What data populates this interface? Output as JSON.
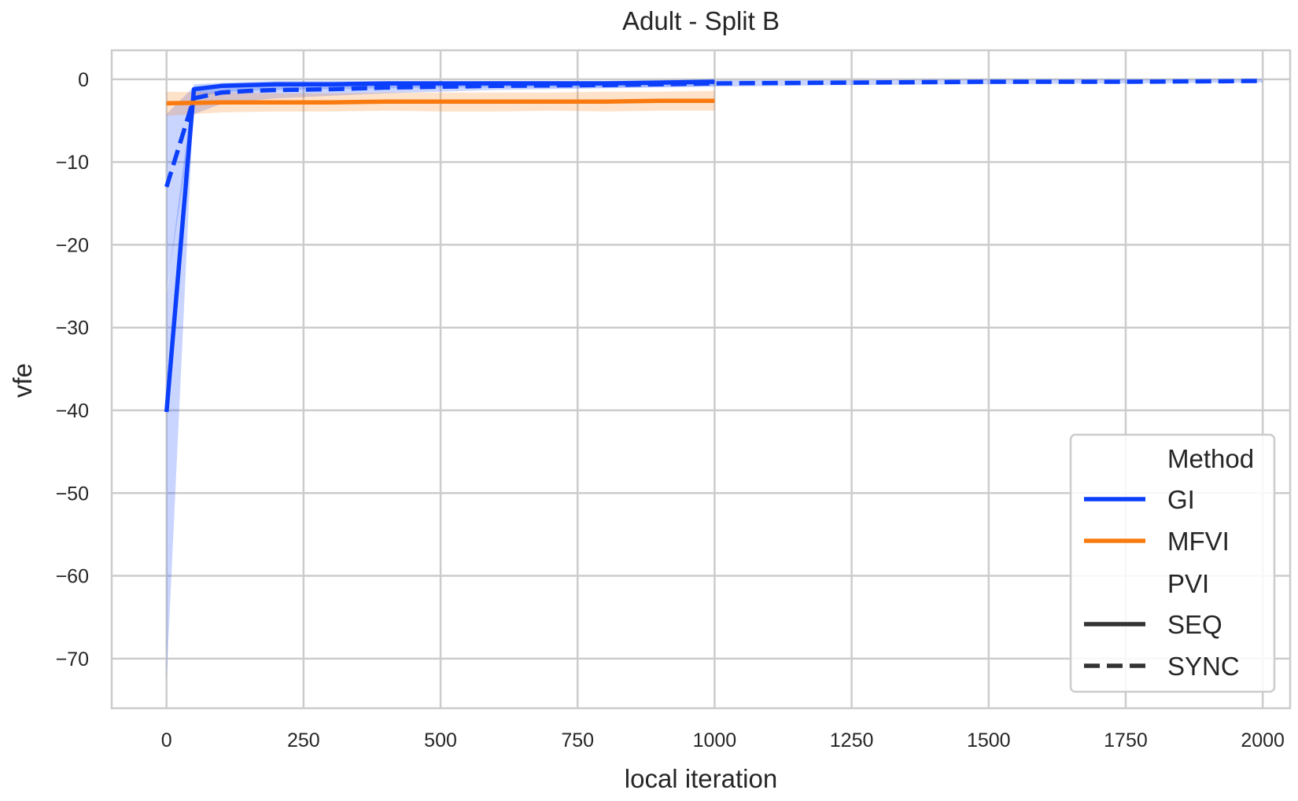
{
  "chart_data": {
    "type": "line",
    "title": "Adult - Split B",
    "xlabel": "local iteration",
    "ylabel": "vfe",
    "xlim": [
      -100,
      2050
    ],
    "ylim": [
      -76,
      3.5
    ],
    "xticks": [
      0,
      250,
      500,
      750,
      1000,
      1250,
      1500,
      1750,
      2000
    ],
    "xtick_labels": [
      "0",
      "250",
      "500",
      "750",
      "1000",
      "1250",
      "1500",
      "1750",
      "2000"
    ],
    "yticks": [
      0,
      -10,
      -20,
      -30,
      -40,
      -50,
      -60,
      -70
    ],
    "ytick_labels": [
      "0",
      "−10",
      "−20",
      "−30",
      "−40",
      "−50",
      "−60",
      "−70"
    ],
    "grid": true,
    "legend": {
      "placement": "lower-right",
      "hue_title": "Method",
      "style_title": "PVI",
      "entries": [
        {
          "label": "GI",
          "kind": "hue"
        },
        {
          "label": "MFVI",
          "kind": "hue"
        },
        {
          "label": "SEQ",
          "kind": "style"
        },
        {
          "label": "SYNC",
          "kind": "style"
        }
      ]
    },
    "colors": {
      "GI": "#0b3ffb",
      "MFVI": "#f97a0f",
      "style_key": "#333333"
    },
    "series": [
      {
        "method": "GI",
        "pvi": "SEQ",
        "dash": "solid",
        "x": [
          0,
          50,
          100,
          150,
          200,
          300,
          400,
          500,
          600,
          700,
          800,
          900,
          1000
        ],
        "y": [
          -40.2,
          -1.2,
          -0.8,
          -0.7,
          -0.6,
          -0.6,
          -0.5,
          -0.5,
          -0.5,
          -0.5,
          -0.5,
          -0.4,
          -0.3
        ],
        "lower": [
          -72.5,
          -2.2,
          -1.6,
          -1.4,
          -1.3,
          -1.2,
          -1.1,
          -1.0,
          -1.0,
          -1.0,
          -1.0,
          -0.9,
          -0.8
        ],
        "upper": [
          -26.0,
          -0.6,
          -0.4,
          -0.3,
          -0.2,
          -0.2,
          -0.2,
          -0.2,
          -0.2,
          -0.2,
          -0.2,
          -0.1,
          0.0
        ]
      },
      {
        "method": "GI",
        "pvi": "SYNC",
        "dash": "dashed",
        "x": [
          0,
          50,
          100,
          150,
          200,
          300,
          400,
          500,
          600,
          800,
          1000,
          1250,
          1500,
          1750,
          2000
        ],
        "y": [
          -13.0,
          -2.3,
          -1.6,
          -1.4,
          -1.3,
          -1.2,
          -1.0,
          -0.9,
          -0.8,
          -0.7,
          -0.5,
          -0.4,
          -0.3,
          -0.3,
          -0.2
        ],
        "lower": [
          -25.5,
          -4.2,
          -3.0,
          -2.6,
          -2.3,
          -2.0,
          -1.7,
          -1.5,
          -1.3,
          -1.1,
          -0.9,
          -0.7,
          -0.6,
          -0.5,
          -0.4
        ],
        "upper": [
          -4.2,
          -0.9,
          -0.6,
          -0.5,
          -0.4,
          -0.4,
          -0.3,
          -0.3,
          -0.2,
          -0.2,
          -0.1,
          -0.1,
          0.0,
          0.0,
          0.0
        ]
      },
      {
        "method": "MFVI",
        "pvi": "SEQ",
        "dash": "solid",
        "x": [
          0,
          100,
          200,
          300,
          400,
          500,
          600,
          700,
          800,
          900,
          1000
        ],
        "y": [
          -2.9,
          -2.8,
          -2.8,
          -2.8,
          -2.7,
          -2.7,
          -2.7,
          -2.7,
          -2.7,
          -2.6,
          -2.6
        ],
        "lower": [
          -4.4,
          -4.0,
          -3.9,
          -3.9,
          -3.8,
          -3.9,
          -3.9,
          -3.8,
          -3.9,
          -3.8,
          -3.8
        ],
        "upper": [
          -1.5,
          -1.6,
          -1.7,
          -1.7,
          -1.6,
          -1.6,
          -1.6,
          -1.6,
          -1.5,
          -1.5,
          -1.4
        ]
      }
    ]
  }
}
